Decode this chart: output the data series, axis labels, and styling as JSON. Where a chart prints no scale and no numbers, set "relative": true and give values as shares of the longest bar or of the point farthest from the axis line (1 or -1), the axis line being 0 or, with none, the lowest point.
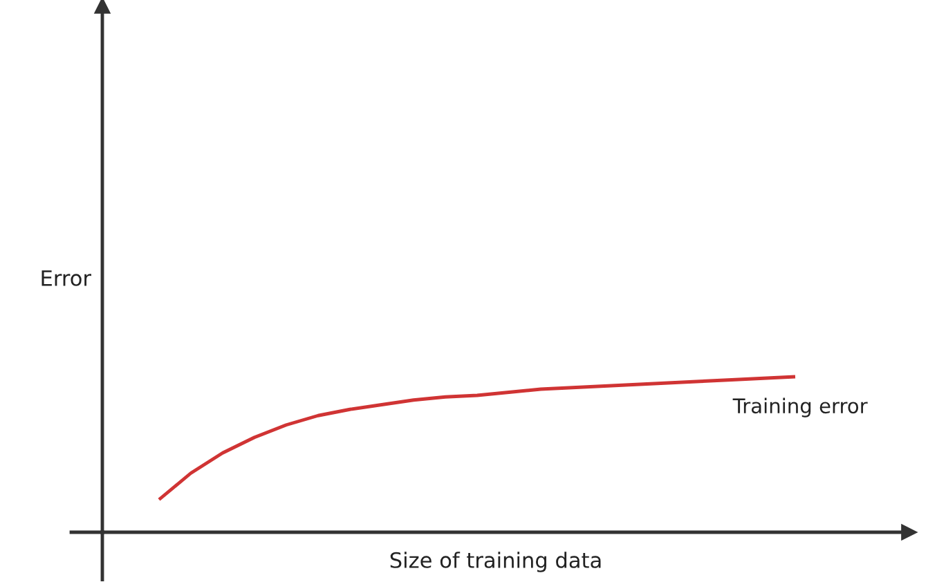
{
  "chart_data": {
    "type": "line",
    "relative": true,
    "xlabel": "Size of training data",
    "ylabel": "Error",
    "categories": [
      null,
      null,
      null,
      null,
      null,
      null,
      null,
      null,
      null,
      null,
      null,
      null,
      null,
      null,
      null,
      null,
      null,
      null,
      null,
      null,
      null
    ],
    "series": [
      {
        "name": "Training error",
        "color": "#d03434",
        "values": [
          0.21,
          0.38,
          0.51,
          0.61,
          0.69,
          0.75,
          0.79,
          0.82,
          0.85,
          0.87,
          0.88,
          0.9,
          0.92,
          0.93,
          0.94,
          0.95,
          0.96,
          0.97,
          0.98,
          0.99,
          1.0
        ]
      }
    ],
    "marker": "none",
    "line_style": "solid"
  }
}
